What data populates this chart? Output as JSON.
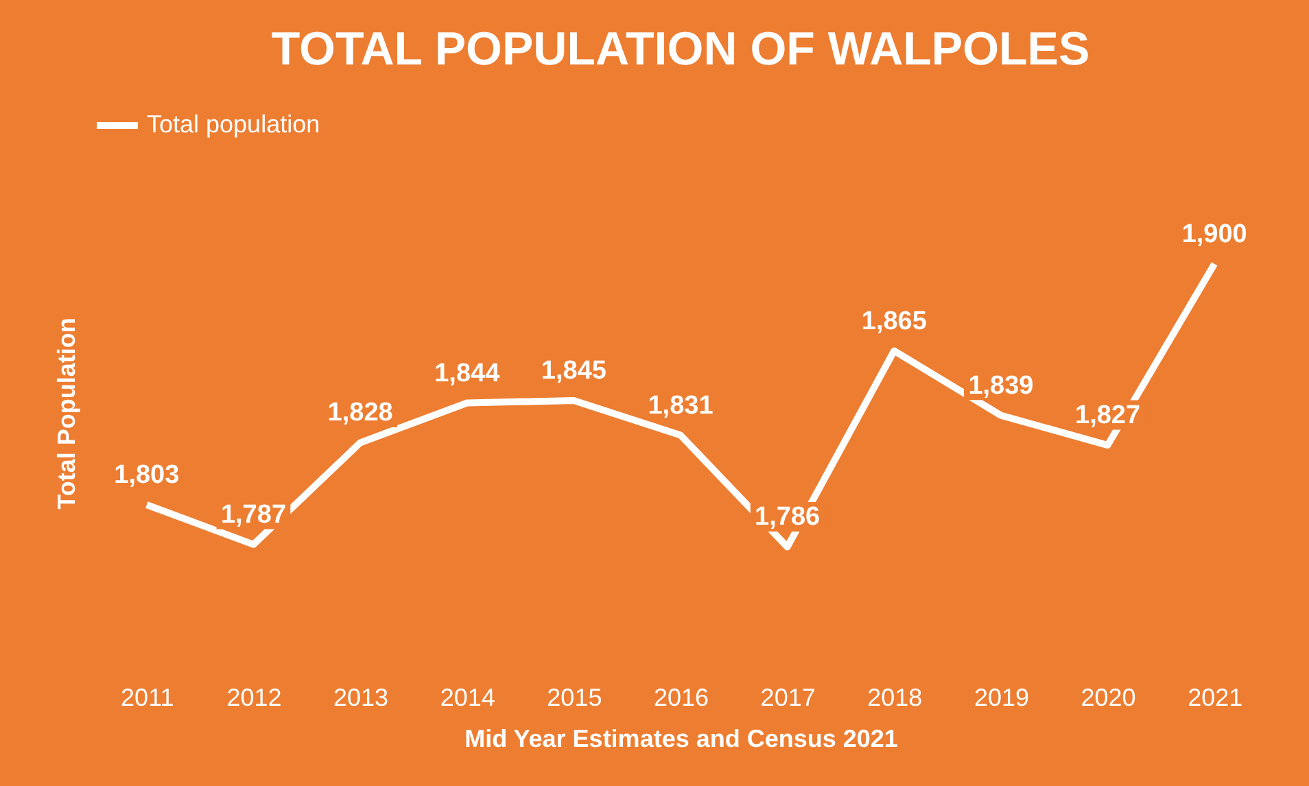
{
  "chart_data": {
    "type": "line",
    "title": "TOTAL POPULATION OF WALPOLES",
    "xlabel": "Mid Year Estimates and Census 2021",
    "ylabel": "Total  Population",
    "categories": [
      "2011",
      "2012",
      "2013",
      "2014",
      "2015",
      "2016",
      "2017",
      "2018",
      "2019",
      "2020",
      "2021"
    ],
    "series": [
      {
        "name": "Total population",
        "color": "#ffffff",
        "values": [
          1803,
          1787,
          1828,
          1844,
          1845,
          1831,
          1786,
          1865,
          1839,
          1827,
          1900
        ],
        "value_labels": [
          "1,803",
          "1,787",
          "1,828",
          "1,844",
          "1,845",
          "1,831",
          "1,786",
          "1,865",
          "1,839",
          "1,827",
          "1,900"
        ]
      }
    ],
    "legend": "top",
    "tick_labels": "x",
    "line_style": "solid"
  }
}
